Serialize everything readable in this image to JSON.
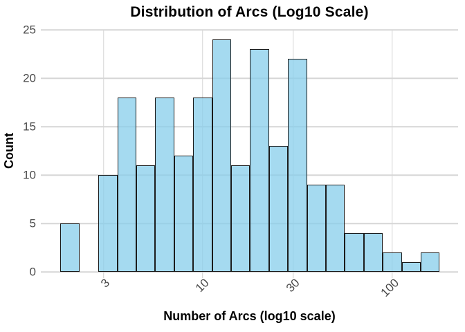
{
  "chart_data": {
    "type": "bar",
    "subtype": "histogram",
    "title": "Distribution of Arcs (Log10 Scale)",
    "xlabel": "Number of Arcs (log10 scale)",
    "ylabel": "Count",
    "x_scale": "log10",
    "x_tick_values": [
      3,
      10,
      30,
      100
    ],
    "x_tick_labels": [
      "3",
      "10",
      "30",
      "100"
    ],
    "y_ticks": [
      0,
      5,
      10,
      15,
      20,
      25
    ],
    "ylim": [
      0,
      25
    ],
    "xlim_log10": [
      0.146,
      2.347
    ],
    "bin_log10_start": 0.25,
    "bin_log10_width": 0.1,
    "counts": [
      5,
      0,
      10,
      18,
      11,
      18,
      12,
      18,
      24,
      11,
      23,
      13,
      22,
      9,
      9,
      4,
      4,
      2,
      1,
      2
    ],
    "grid": "major-only",
    "legend": "none",
    "colors": {
      "bar_fill": "#87CEEB",
      "bar_fill_opacity": 0.75,
      "bar_border": "#1b1b1b",
      "gridline": "#d6d6d6",
      "tick_mark": "#cfcfcf",
      "tick_text": "#4a4a4a",
      "title_text": "#000000",
      "background": "#ffffff"
    }
  }
}
